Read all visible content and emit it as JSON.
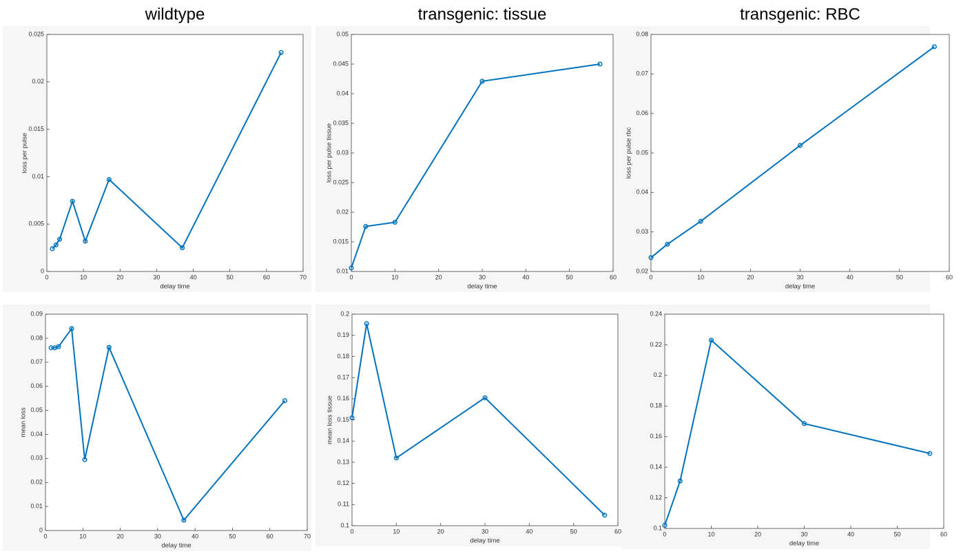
{
  "chart_data": [
    {
      "type": "line",
      "title": "wildtype",
      "xlabel": "delay time",
      "ylabel": "loss per pulse",
      "color": "#0072bd",
      "x": [
        1.5,
        2.5,
        3.5,
        7,
        10.5,
        17,
        37,
        64
      ],
      "values": [
        0.0024,
        0.0028,
        0.0034,
        0.0074,
        0.0032,
        0.0097,
        0.0025,
        0.0231
      ],
      "xlim": [
        0,
        70
      ],
      "xticks": [
        0,
        10,
        20,
        30,
        40,
        50,
        60,
        70
      ],
      "ylim": [
        0,
        0.025
      ],
      "yticks": [
        0,
        0.005,
        0.01,
        0.015,
        0.02,
        0.025
      ]
    },
    {
      "type": "line",
      "title": "transgenic: tissue",
      "xlabel": "delay time",
      "ylabel": "loss per pulse tissue",
      "color": "#0072bd",
      "x": [
        0,
        3.3,
        10,
        30,
        57
      ],
      "values": [
        0.0106,
        0.0176,
        0.0183,
        0.0421,
        0.045
      ],
      "xlim": [
        0,
        60
      ],
      "xticks": [
        0,
        10,
        20,
        30,
        40,
        50,
        60
      ],
      "ylim": [
        0.01,
        0.05
      ],
      "yticks": [
        0.01,
        0.015,
        0.02,
        0.025,
        0.03,
        0.035,
        0.04,
        0.045,
        0.05
      ]
    },
    {
      "type": "line",
      "title": "transgenic: RBC",
      "xlabel": "delay time",
      "ylabel": "loss per pulse rbc",
      "color": "#0072bd",
      "x": [
        0,
        3.3,
        10,
        30,
        57
      ],
      "values": [
        0.0235,
        0.0269,
        0.0327,
        0.0519,
        0.0769
      ],
      "xlim": [
        0,
        60
      ],
      "xticks": [
        0,
        10,
        20,
        30,
        40,
        50,
        60
      ],
      "ylim": [
        0.02,
        0.08
      ],
      "yticks": [
        0.02,
        0.03,
        0.04,
        0.05,
        0.06,
        0.07,
        0.08
      ]
    },
    {
      "type": "line",
      "xlabel": "delay time",
      "ylabel": "mean loss",
      "color": "#0072bd",
      "x": [
        1.5,
        2.5,
        3.5,
        7,
        10.5,
        17,
        37,
        64
      ],
      "values": [
        0.076,
        0.076,
        0.0765,
        0.084,
        0.0295,
        0.0762,
        0.0043,
        0.054
      ],
      "xlim": [
        0,
        70
      ],
      "xticks": [
        0,
        10,
        20,
        30,
        40,
        50,
        60,
        70
      ],
      "ylim": [
        0,
        0.09
      ],
      "yticks": [
        0,
        0.01,
        0.02,
        0.03,
        0.04,
        0.05,
        0.06,
        0.07,
        0.08,
        0.09
      ]
    },
    {
      "type": "line",
      "xlabel": "delay time",
      "ylabel": "mean loss tissue",
      "color": "#0072bd",
      "x": [
        0,
        3.3,
        10,
        30,
        57
      ],
      "values": [
        0.151,
        0.1955,
        0.132,
        0.1605,
        0.105
      ],
      "xlim": [
        0,
        60
      ],
      "xticks": [
        0,
        10,
        20,
        30,
        40,
        50,
        60
      ],
      "ylim": [
        0.1,
        0.2
      ],
      "yticks": [
        0.1,
        0.11,
        0.12,
        0.13,
        0.14,
        0.15,
        0.16,
        0.17,
        0.18,
        0.19,
        0.2
      ]
    },
    {
      "type": "line",
      "xlabel": "delay time",
      "color": "#0072bd",
      "x": [
        0,
        3.3,
        10,
        30,
        57
      ],
      "values": [
        0.102,
        0.131,
        0.223,
        0.1685,
        0.149
      ],
      "xlim": [
        0,
        60
      ],
      "xticks": [
        0,
        10,
        20,
        30,
        40,
        50,
        60
      ],
      "ylim": [
        0.1,
        0.24
      ],
      "yticks": [
        0.1,
        0.12,
        0.14,
        0.16,
        0.18,
        0.2,
        0.22,
        0.24
      ]
    }
  ]
}
